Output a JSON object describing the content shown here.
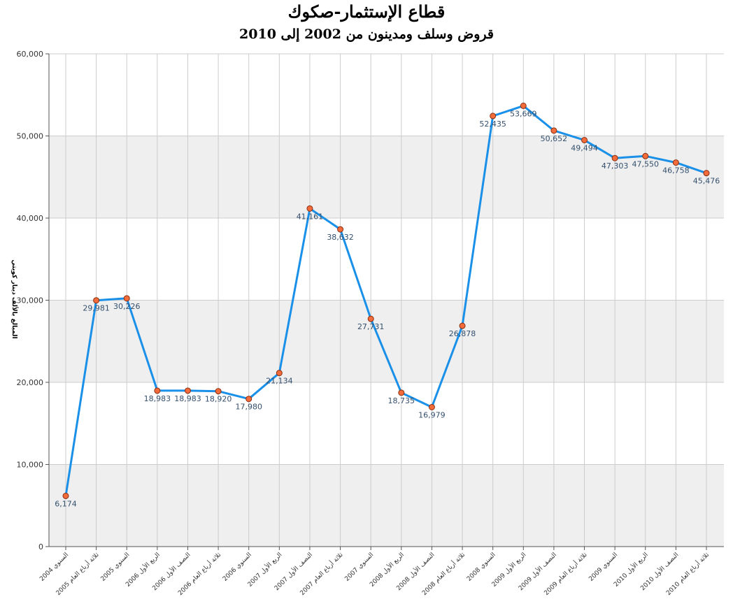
{
  "chart_data": {
    "type": "line",
    "title": "قطاع الإستثمار-صكوك",
    "subtitle": "قروض وسلف ومدينون من 2002 إلى 2010",
    "ylabel": "المبالغ بالألف دينار كويتي",
    "xlabel": "",
    "ylim": [
      0,
      60000
    ],
    "yticks": [
      "0",
      "10,000",
      "20,000",
      "30,000",
      "40,000",
      "50,000",
      "60,000"
    ],
    "grid": true,
    "legend": "none",
    "categories": [
      "السنوي 2004",
      "ثلاثة أرباع العام 2005",
      "السنوي 2005",
      "الربع الأول 2006",
      "النصف الأول 2006",
      "ثلاثة أرباع العام 2006",
      "السنوي 2006",
      "الربع الأول 2007",
      "النصف الأول 2007",
      "ثلاثة أرباع العام 2007",
      "السنوي 2007",
      "الربع الأول 2008",
      "النصف الأول 2008",
      "ثلاثة أرباع العام 2008",
      "السنوي 2008",
      "الربع الأول 2009",
      "النصف الأول 2009",
      "ثلاثة أرباع العام 2009",
      "السنوي 2009",
      "الربع الأول 2010",
      "النصف الأول 2010",
      "ثلاثة أرباع العام 2010"
    ],
    "values": [
      6174,
      29981,
      30226,
      18983,
      18983,
      18920,
      17980,
      21134,
      41161,
      38632,
      27731,
      18735,
      16979,
      26878,
      52435,
      53669,
      50652,
      49494,
      47303,
      47550,
      46758,
      45476
    ],
    "labels": [
      "6,174",
      "29,981",
      "30,226",
      "18,983",
      "18,983",
      "18,920",
      "17,980",
      "21,134",
      "41,161",
      "38,632",
      "27,731",
      "18,735",
      "16,979",
      "26,878",
      "52,435",
      "53,669",
      "50,652",
      "49,494",
      "47,303",
      "47,550",
      "46,758",
      "45,476"
    ],
    "colors": {
      "line": "#1a90e8",
      "marker_fill": "#f26b3a",
      "marker_stroke": "#8a2f10",
      "band": "#efefef",
      "grid": "#cccccc",
      "label": "#34506e"
    }
  }
}
